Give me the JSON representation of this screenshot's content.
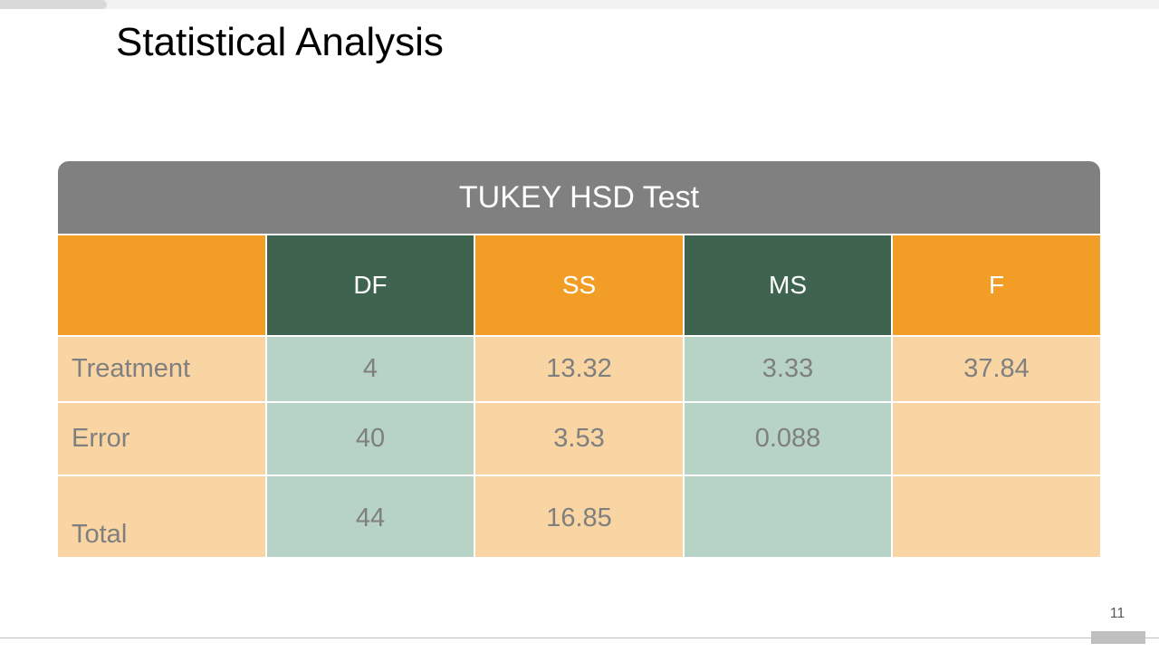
{
  "title": "Statistical Analysis",
  "page_number": "11",
  "table": {
    "caption": "TUKEY HSD Test",
    "header": [
      "DF",
      "SS",
      "MS",
      "F"
    ],
    "rows": [
      {
        "label": "Treatment",
        "cells": [
          "4",
          "13.32",
          "3.33",
          "37.84"
        ]
      },
      {
        "label": "Error",
        "cells": [
          "40",
          "3.53",
          "0.088",
          null
        ]
      },
      {
        "label": "Total",
        "cells": [
          "44",
          "16.85",
          null,
          null
        ]
      }
    ]
  }
}
